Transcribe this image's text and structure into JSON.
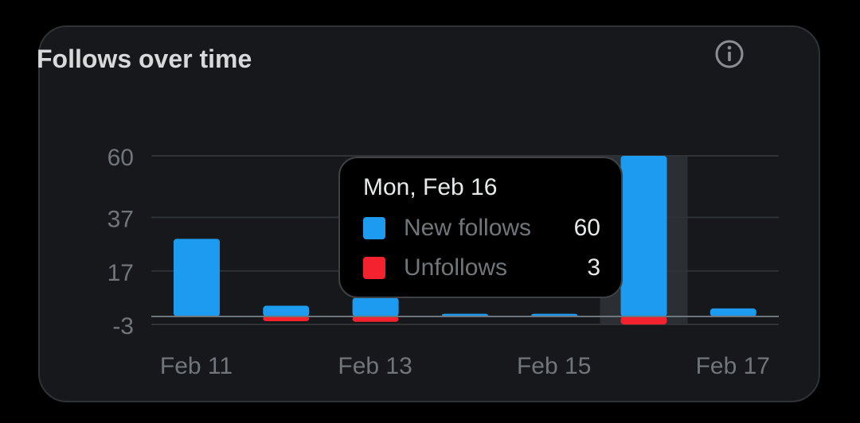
{
  "card": {
    "title": "Follows over time",
    "info_icon": "info-icon"
  },
  "tooltip": {
    "date": "Mon, Feb 16",
    "rows": [
      {
        "label": "New follows",
        "value": "60",
        "color": "#1d9bf0"
      },
      {
        "label": "Unfollows",
        "value": "3",
        "color": "#f4212e"
      }
    ]
  },
  "chart_data": {
    "type": "bar",
    "title": "Follows over time",
    "categories": [
      "Feb 11",
      "Feb 12",
      "Feb 13",
      "Feb 14",
      "Feb 15",
      "Feb 16",
      "Feb 17"
    ],
    "x_tick_labels": [
      "Feb 11",
      "Feb 13",
      "Feb 15",
      "Feb 17"
    ],
    "y_ticks": [
      60,
      37,
      17,
      -3
    ],
    "ylim": [
      -3,
      60
    ],
    "grid": true,
    "highlighted_category": "Feb 16",
    "series": [
      {
        "name": "New follows",
        "color": "#1d9bf0",
        "values": [
          29,
          4,
          7,
          1,
          1,
          60,
          3
        ]
      },
      {
        "name": "Unfollows",
        "color": "#f4212e",
        "values": [
          0,
          -1,
          -2,
          0,
          0,
          -3,
          0
        ]
      }
    ]
  }
}
